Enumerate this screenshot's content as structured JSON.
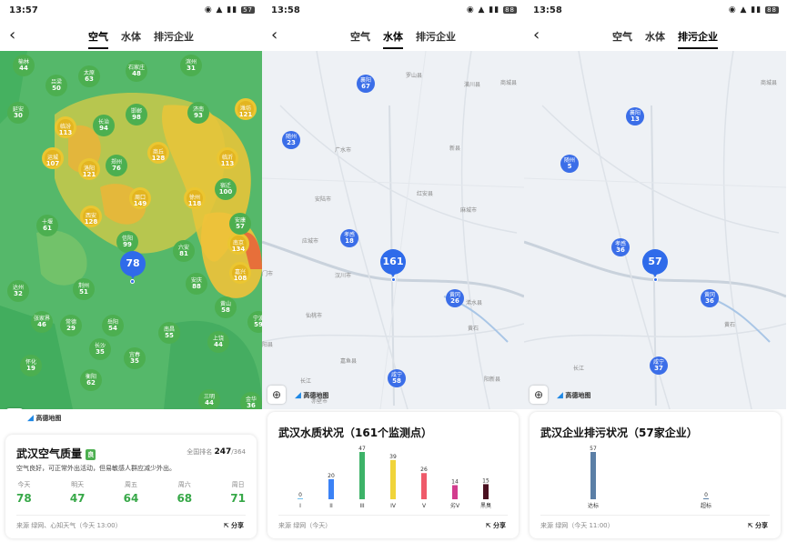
{
  "status": [
    {
      "time": "13:57",
      "battery": "57"
    },
    {
      "time": "13:58",
      "battery": "88"
    },
    {
      "time": "13:58",
      "battery": "88"
    }
  ],
  "tabs": [
    "空气",
    "水体",
    "排污企业"
  ],
  "air": {
    "markers": [
      {
        "name": "榆林",
        "value": "44"
      },
      {
        "name": "太原",
        "value": "63"
      },
      {
        "name": "石家庄",
        "value": "48"
      },
      {
        "name": "滨州",
        "value": "31"
      },
      {
        "name": "吕梁",
        "value": "50"
      },
      {
        "name": "延安",
        "value": "30"
      },
      {
        "name": "临汾",
        "value": "113"
      },
      {
        "name": "长治",
        "value": "94"
      },
      {
        "name": "邯郸",
        "value": "98"
      },
      {
        "name": "济南",
        "value": "93"
      },
      {
        "name": "潍坊",
        "value": "121"
      },
      {
        "name": "运城",
        "value": "107"
      },
      {
        "name": "洛阳",
        "value": "121"
      },
      {
        "name": "郑州",
        "value": "76"
      },
      {
        "name": "商丘",
        "value": "128"
      },
      {
        "name": "临沂",
        "value": "113"
      },
      {
        "name": "西安",
        "value": "128"
      },
      {
        "name": "周口",
        "value": "149"
      },
      {
        "name": "徐州",
        "value": "118"
      },
      {
        "name": "宿迁",
        "value": "100"
      },
      {
        "name": "十堰",
        "value": "61"
      },
      {
        "name": "信阳",
        "value": "99"
      },
      {
        "name": "六安",
        "value": "81"
      },
      {
        "name": "南京",
        "value": "134"
      },
      {
        "name": "达州",
        "value": "32"
      },
      {
        "name": "荆州",
        "value": "51"
      },
      {
        "name": "安庆",
        "value": "88"
      },
      {
        "name": "黄山",
        "value": "58"
      },
      {
        "name": "张家界",
        "value": "46"
      },
      {
        "name": "常德",
        "value": "29"
      },
      {
        "name": "岳阳",
        "value": "54"
      },
      {
        "name": "南昌",
        "value": "55"
      },
      {
        "name": "长沙",
        "value": "35"
      },
      {
        "name": "上饶",
        "value": "44"
      },
      {
        "name": "怀化",
        "value": "19"
      },
      {
        "name": "宜春",
        "value": "35"
      },
      {
        "name": "衡阳",
        "value": "62"
      },
      {
        "name": "郴州",
        "value": "43"
      },
      {
        "name": "赣州",
        "value": "33"
      },
      {
        "name": "三明",
        "value": "44"
      },
      {
        "name": "安康",
        "value": "57"
      },
      {
        "name": "嘉兴",
        "value": "108"
      },
      {
        "name": "宁波",
        "value": "59"
      },
      {
        "name": "金华",
        "value": "36"
      },
      {
        "name": "龙岩",
        "value": "42"
      }
    ],
    "pin": "78",
    "card": {
      "title": "武汉空气质量",
      "badge": "良",
      "rank_label": "全国排名",
      "rank_value": "247",
      "rank_total": "/364",
      "desc": "空气良好，可正常外出活动，但易敏感人群应减少外出。",
      "forecast": [
        {
          "day": "今天",
          "aqi": "78"
        },
        {
          "day": "明天",
          "aqi": "47"
        },
        {
          "day": "周五",
          "aqi": "64"
        },
        {
          "day": "周六",
          "aqi": "68"
        },
        {
          "day": "周日",
          "aqi": "71"
        }
      ],
      "source": "来源 绿网、心知天气（今天 13:00）",
      "share": "分享"
    }
  },
  "water": {
    "markers": [
      {
        "name": "襄阳",
        "value": "67"
      },
      {
        "name": "随州",
        "value": "23"
      },
      {
        "name": "孝感",
        "value": "18"
      },
      {
        "name": "黄冈",
        "value": "26"
      },
      {
        "name": "咸宁",
        "value": "58"
      }
    ],
    "pin": "161",
    "map_labels": [
      "罗山县",
      "潢川县",
      "新县",
      "麻城市",
      "红安县",
      "广水市",
      "安陆市",
      "应城市",
      "汉川市",
      "仙桃市",
      "嘉鱼县",
      "赤壁市",
      "阳新县",
      "浠水县",
      "黄石",
      "商城县",
      "长江",
      "门市",
      "阳县"
    ],
    "card": {
      "title": "武汉水质状况（161个监测点）",
      "source": "来源 绿网（今天）",
      "share": "分享"
    }
  },
  "enterprise": {
    "markers": [
      {
        "name": "襄阳",
        "value": "13"
      },
      {
        "name": "随州",
        "value": "5"
      },
      {
        "name": "孝感",
        "value": "36"
      },
      {
        "name": "黄冈",
        "value": "36"
      },
      {
        "name": "咸宁",
        "value": "37"
      }
    ],
    "pin": "57",
    "map_labels": [
      "商城县",
      "长江",
      "黄石"
    ],
    "card": {
      "title": "武汉企业排污状况（57家企业）",
      "source": "来源 绿网（今天 11:00）",
      "share": "分享"
    }
  },
  "map_logo": "高德地图",
  "chart_data": [
    {
      "type": "bar",
      "title": "武汉水质状况（161个监测点）",
      "categories": [
        "I",
        "II",
        "III",
        "IV",
        "V",
        "劣V",
        "黑臭"
      ],
      "values": [
        0,
        20,
        47,
        39,
        26,
        14,
        15
      ],
      "colors": [
        "#6ec1ef",
        "#3b82f6",
        "#3db368",
        "#f0d43a",
        "#ef5a6a",
        "#d23d8e",
        "#4a1020"
      ],
      "xlabel": "",
      "ylabel": "",
      "ylim": [
        0,
        47
      ]
    },
    {
      "type": "bar",
      "title": "武汉企业排污状况（57家企业）",
      "categories": [
        "达标",
        "超标"
      ],
      "values": [
        57,
        0
      ],
      "colors": [
        "#5b7fa6",
        "#5b7fa6"
      ],
      "xlabel": "",
      "ylabel": "",
      "ylim": [
        0,
        57
      ]
    }
  ]
}
